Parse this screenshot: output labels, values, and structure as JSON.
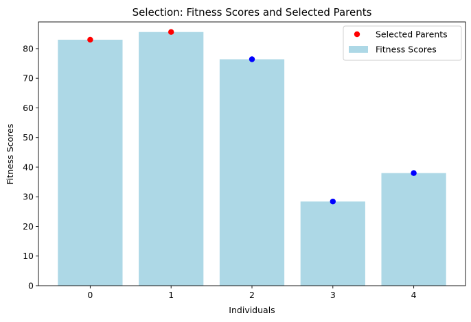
{
  "chart_data": {
    "type": "bar",
    "title": "Selection: Fitness Scores and Selected Parents",
    "xlabel": "Individuals",
    "ylabel": "Fitness Scores",
    "categories": [
      "0",
      "1",
      "2",
      "3",
      "4"
    ],
    "x": [
      0,
      1,
      2,
      3,
      4
    ],
    "ylim": [
      0,
      89
    ],
    "yticks": [
      0,
      10,
      20,
      30,
      40,
      50,
      60,
      70,
      80
    ],
    "grid": false,
    "legend_position": "top-right",
    "series": [
      {
        "name": "Fitness Scores",
        "type": "bar",
        "color": "#add8e6",
        "values": [
          83.0,
          85.6,
          76.4,
          28.4,
          38.0
        ]
      },
      {
        "name": "Selected Parents",
        "type": "scatter",
        "color": "#ff0000",
        "x": [
          0,
          1
        ],
        "values": [
          83.0,
          85.6
        ]
      },
      {
        "name": "",
        "type": "scatter",
        "color": "#0000ff",
        "x": [
          2,
          3,
          4
        ],
        "values": [
          76.4,
          28.4,
          38.0
        ]
      }
    ],
    "legend": [
      {
        "label": "Selected Parents",
        "marker": "circle",
        "color": "#ff0000"
      },
      {
        "label": "Fitness Scores",
        "marker": "rect",
        "color": "#add8e6"
      }
    ]
  }
}
